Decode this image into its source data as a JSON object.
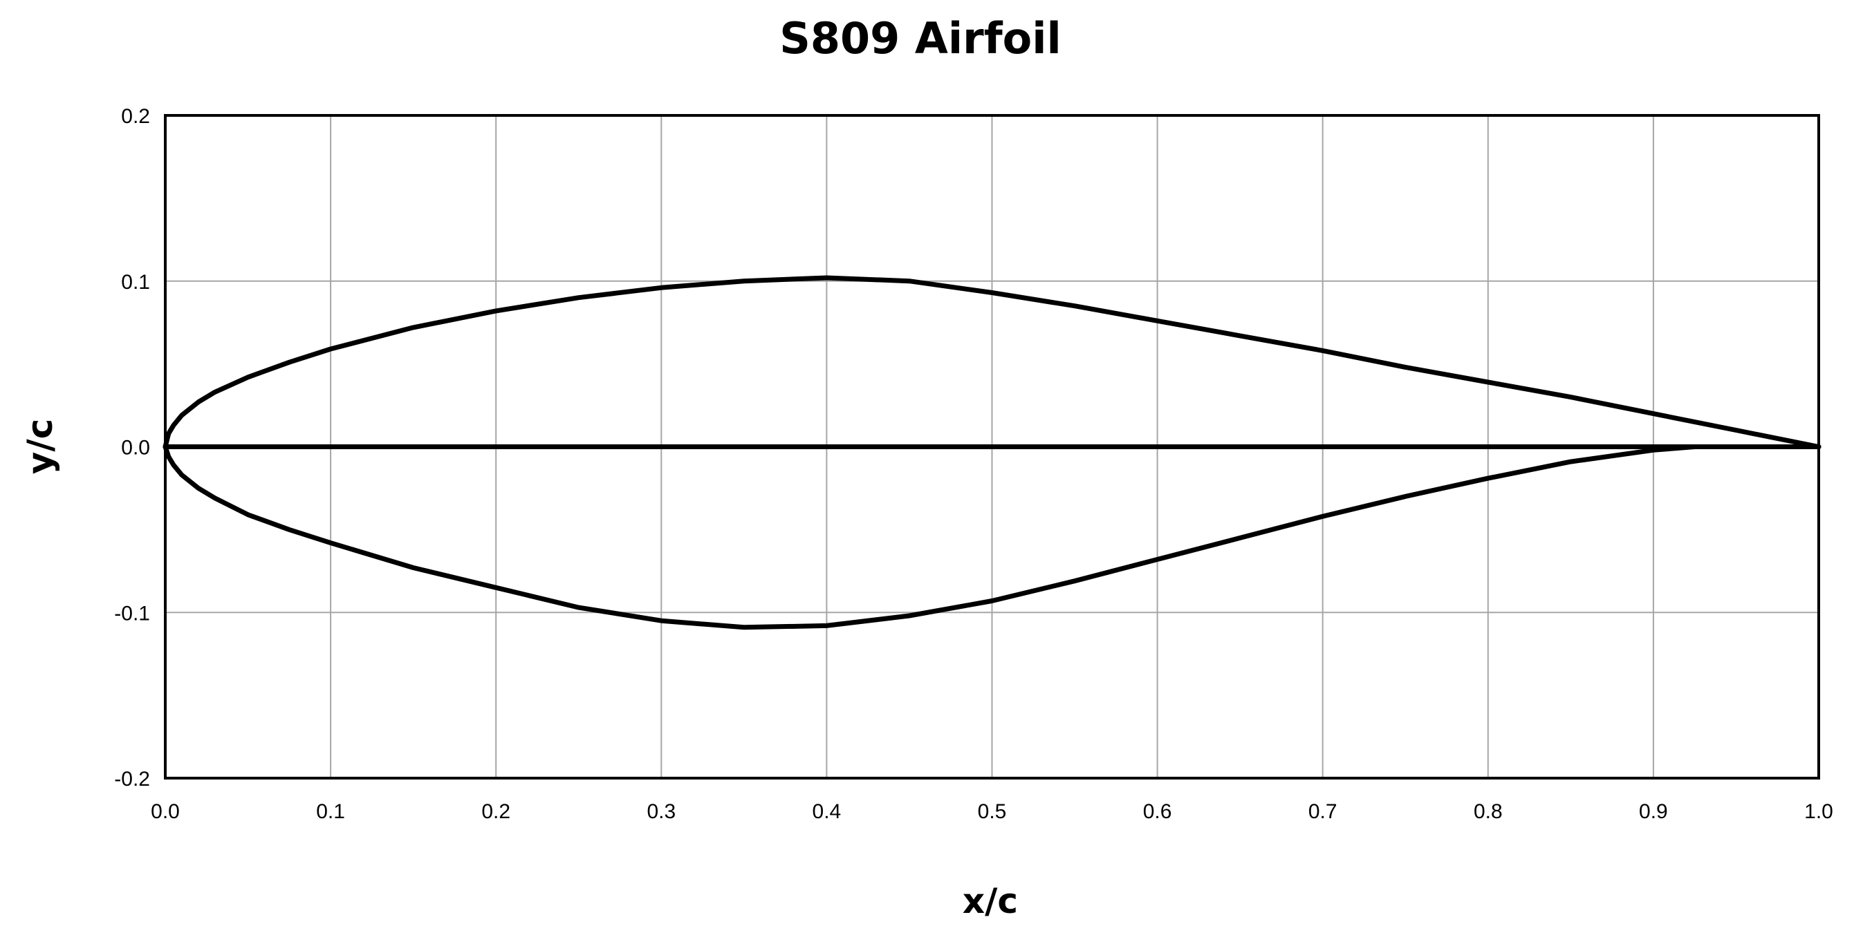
{
  "chart_data": {
    "type": "line",
    "title": "S809 Airfoil",
    "xlabel": "x/c",
    "ylabel": "y/c",
    "xlim": [
      0,
      1
    ],
    "ylim": [
      -0.2,
      0.2
    ],
    "grid": true,
    "x_ticks": [
      "0.0",
      "0.1",
      "0.2",
      "0.3",
      "0.4",
      "0.5",
      "0.6",
      "0.7",
      "0.8",
      "0.9",
      "1.0"
    ],
    "y_ticks": [
      "0.2",
      "0.1",
      "0.0",
      "-0.1",
      "-0.2"
    ],
    "series": [
      {
        "x": [
          0.0,
          0.002,
          0.005,
          0.01,
          0.02,
          0.03,
          0.05,
          0.075,
          0.1,
          0.15,
          0.2,
          0.25,
          0.3,
          0.35,
          0.4,
          0.45,
          0.5,
          0.55,
          0.6,
          0.65,
          0.7,
          0.75,
          0.8,
          0.85,
          0.9,
          0.95,
          1.0
        ],
        "y": [
          0.0,
          0.008,
          0.013,
          0.019,
          0.027,
          0.033,
          0.042,
          0.051,
          0.059,
          0.072,
          0.082,
          0.09,
          0.096,
          0.1,
          0.102,
          0.1,
          0.093,
          0.085,
          0.076,
          0.067,
          0.058,
          0.048,
          0.039,
          0.03,
          0.02,
          0.01,
          0.0
        ]
      },
      {
        "x": [
          0.0,
          0.002,
          0.005,
          0.01,
          0.02,
          0.03,
          0.05,
          0.075,
          0.1,
          0.15,
          0.2,
          0.25,
          0.3,
          0.35,
          0.4,
          0.45,
          0.5,
          0.55,
          0.6,
          0.65,
          0.7,
          0.75,
          0.8,
          0.85,
          0.9,
          0.925,
          0.95,
          0.975,
          1.0
        ],
        "y": [
          0.0,
          -0.006,
          -0.011,
          -0.017,
          -0.025,
          -0.031,
          -0.041,
          -0.05,
          -0.058,
          -0.073,
          -0.085,
          -0.097,
          -0.105,
          -0.109,
          -0.108,
          -0.102,
          -0.093,
          -0.081,
          -0.068,
          -0.055,
          -0.042,
          -0.03,
          -0.019,
          -0.009,
          -0.002,
          0.0,
          0.0,
          0.0,
          0.0
        ]
      },
      {
        "x": [
          0.0,
          1.0
        ],
        "y": [
          0.0,
          0.0
        ]
      }
    ]
  }
}
